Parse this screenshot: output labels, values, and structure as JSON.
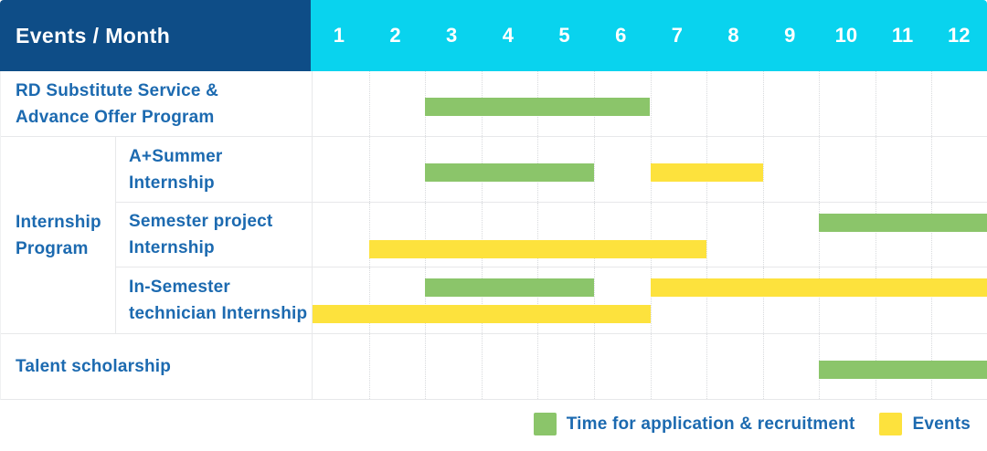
{
  "title_header": {
    "label": "Events / Month",
    "months": [
      "1",
      "2",
      "3",
      "4",
      "5",
      "6",
      "7",
      "8",
      "9",
      "10",
      "11",
      "12"
    ]
  },
  "legend": [
    {
      "id": "application",
      "label": "Time for application & recruitment",
      "color": "#8bc56a"
    },
    {
      "id": "events",
      "label": "Events",
      "color": "#fde23d"
    }
  ],
  "colors": {
    "header_bg": "#0e4d87",
    "months_bg": "#09d3ee",
    "header_text": "#ffffff",
    "label_text": "#1c6ab0",
    "grid_line": "#e7e8ea",
    "grid_dotted": "#d8dadd",
    "bar_green": "#8bc56a",
    "bar_yellow": "#fde23d"
  },
  "chart_data": {
    "type": "bar",
    "subtype": "gantt",
    "title": "Events / Month",
    "x": {
      "label": "Month",
      "ticks": [
        1,
        2,
        3,
        4,
        5,
        6,
        7,
        8,
        9,
        10,
        11,
        12
      ],
      "range": [
        1,
        12
      ]
    },
    "grid": "on",
    "legend_position": "bottom-right",
    "series_legend": [
      {
        "series": "application",
        "label": "Time for application & recruitment",
        "color": "#8bc56a"
      },
      {
        "series": "events",
        "label": "Events",
        "color": "#fde23d"
      }
    ],
    "group_labels": [
      {
        "name": "Internship Program",
        "label_lines": [
          "Internship",
          "Program"
        ]
      }
    ],
    "tasks": [
      {
        "name": "RD Substitute Service & Advance Offer Program",
        "group": null,
        "label_lines": [
          "RD Substitute Service &",
          "Advance Offer Program"
        ],
        "bars": [
          {
            "series": "application",
            "start_month": 3,
            "end_month": 6,
            "lane": 0
          }
        ]
      },
      {
        "name": "A+Summer Internship",
        "group": "Internship Program",
        "label_lines": [
          "A+Summer",
          "Internship"
        ],
        "bars": [
          {
            "series": "application",
            "start_month": 3,
            "end_month": 5,
            "lane": 0
          },
          {
            "series": "events",
            "start_month": 7,
            "end_month": 8,
            "lane": 0
          }
        ]
      },
      {
        "name": "Semester project Internship",
        "group": "Internship Program",
        "label_lines": [
          "Semester project",
          "Internship"
        ],
        "bars": [
          {
            "series": "application",
            "start_month": 10,
            "end_month": 12,
            "lane": 0
          },
          {
            "series": "events",
            "start_month": 2,
            "end_month": 7,
            "lane": 1
          }
        ]
      },
      {
        "name": "In-Semester technician Internship",
        "group": "Internship Program",
        "label_lines": [
          "In-Semester",
          "technician Internship"
        ],
        "bars": [
          {
            "series": "application",
            "start_month": 3,
            "end_month": 5,
            "lane": 0
          },
          {
            "series": "events",
            "start_month": 7,
            "end_month": 12,
            "lane": 0
          },
          {
            "series": "events",
            "start_month": 1,
            "end_month": 6,
            "lane": 1
          }
        ]
      },
      {
        "name": "Talent scholarship",
        "group": null,
        "label_lines": [
          "Talent scholarship"
        ],
        "bars": [
          {
            "series": "application",
            "start_month": 10,
            "end_month": 12,
            "lane": 0
          }
        ]
      }
    ]
  }
}
